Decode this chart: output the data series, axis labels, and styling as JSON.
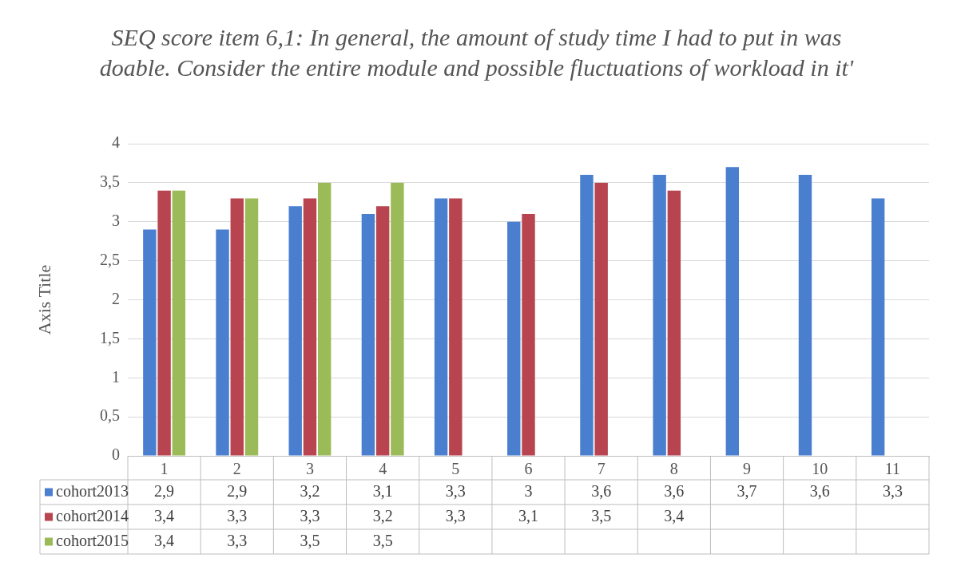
{
  "chart_data": {
    "type": "bar",
    "title": "SEQ score item 6,1: In general, the amount of study time I had to put in was doable. Consider the entire module and possible fluctuations of workload in it'",
    "ylabel": "Axis Title",
    "categories": [
      "1",
      "2",
      "3",
      "4",
      "5",
      "6",
      "7",
      "8",
      "9",
      "10",
      "11"
    ],
    "series": [
      {
        "name": "cohort2013",
        "color": "#4a7fd0",
        "values": [
          2.9,
          2.9,
          3.2,
          3.1,
          3.3,
          3,
          3.6,
          3.6,
          3.7,
          3.6,
          3.3
        ],
        "value_labels": [
          "2,9",
          "2,9",
          "3,2",
          "3,1",
          "3,3",
          "3",
          "3,6",
          "3,6",
          "3,7",
          "3,6",
          "3,3"
        ]
      },
      {
        "name": "cohort2014",
        "color": "#b84450",
        "values": [
          3.4,
          3.3,
          3.3,
          3.2,
          3.3,
          3.1,
          3.5,
          3.4,
          null,
          null,
          null
        ],
        "value_labels": [
          "3,4",
          "3,3",
          "3,3",
          "3,2",
          "3,3",
          "3,1",
          "3,5",
          "3,4",
          null,
          null,
          null
        ]
      },
      {
        "name": "cohort2015",
        "color": "#9bbb59",
        "values": [
          3.4,
          3.3,
          3.5,
          3.5,
          null,
          null,
          null,
          null,
          null,
          null,
          null
        ],
        "value_labels": [
          "3,4",
          "3,3",
          "3,5",
          "3,5",
          null,
          null,
          null,
          null,
          null,
          null,
          null
        ]
      }
    ],
    "ylim": [
      0,
      4
    ],
    "yticks": [
      0,
      {
        "value": 0.5,
        "label": "0,5"
      },
      1,
      {
        "value": 1.5,
        "label": "1,5"
      },
      2,
      {
        "value": 2.5,
        "label": "2,5"
      },
      3,
      {
        "value": 3.5,
        "label": "3,5"
      },
      4
    ],
    "grid": "y",
    "legend": "bottom"
  }
}
